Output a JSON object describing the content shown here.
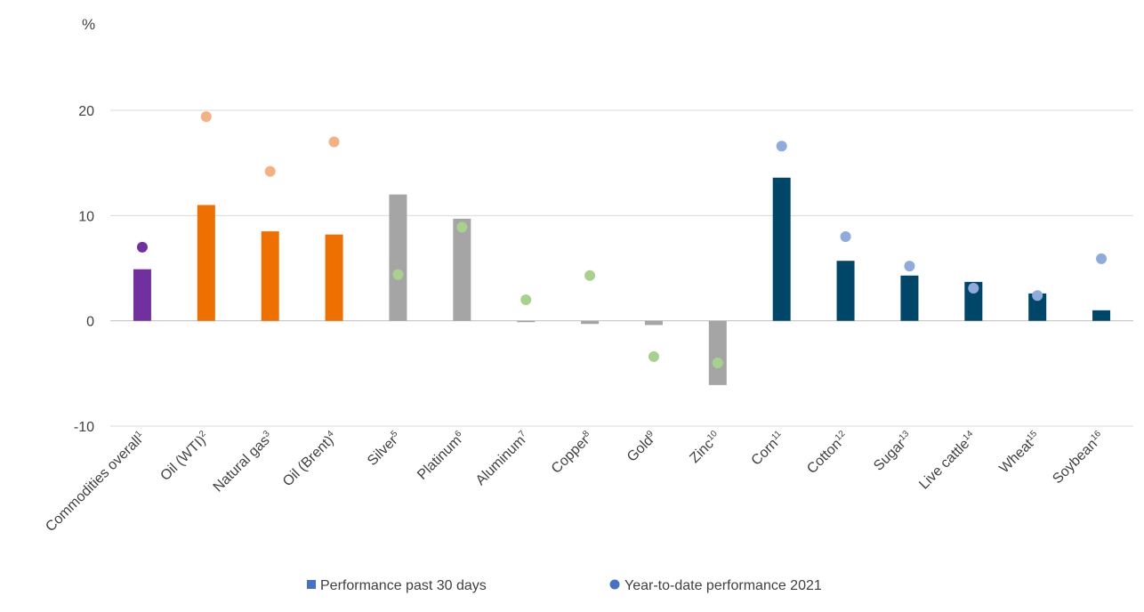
{
  "chart_data": {
    "type": "bar",
    "unit_label": "%",
    "ylim": [
      -10,
      20
    ],
    "yticks": [
      -10,
      0,
      10,
      20
    ],
    "ytick_labels": [
      "-10",
      "0",
      "10",
      "20"
    ],
    "grid": true,
    "legend_position": "bottom",
    "categories": [
      {
        "name": "Commodities overall",
        "sup": "1"
      },
      {
        "name": "Oil (WTI)",
        "sup": "2"
      },
      {
        "name": "Natural gas",
        "sup": "3"
      },
      {
        "name": "Oil (Brent)",
        "sup": "4"
      },
      {
        "name": "Silver",
        "sup": "5"
      },
      {
        "name": "Platinum",
        "sup": "6"
      },
      {
        "name": "Aluminum",
        "sup": "7"
      },
      {
        "name": "Copper",
        "sup": "8"
      },
      {
        "name": "Gold",
        "sup": "9"
      },
      {
        "name": "Zinc",
        "sup": "10"
      },
      {
        "name": "Corn",
        "sup": "11"
      },
      {
        "name": "Cotton",
        "sup": "12"
      },
      {
        "name": "Sugar",
        "sup": "13"
      },
      {
        "name": "Live cattle",
        "sup": "14"
      },
      {
        "name": "Wheat",
        "sup": "15"
      },
      {
        "name": "Soybean",
        "sup": "16"
      }
    ],
    "series": [
      {
        "name": "Performance past 30 days",
        "kind": "bar",
        "values": [
          4.9,
          11.0,
          8.5,
          8.2,
          12.0,
          9.7,
          -0.1,
          -0.3,
          -0.4,
          -6.1,
          13.6,
          5.7,
          4.3,
          3.7,
          2.6,
          1.0
        ]
      },
      {
        "name": "Year-to-date performance 2021",
        "kind": "point",
        "values": [
          7.0,
          19.4,
          14.2,
          17.0,
          4.4,
          8.9,
          2.0,
          4.3,
          -3.4,
          -4.0,
          16.6,
          8.0,
          5.2,
          3.1,
          2.4,
          5.9
        ]
      }
    ],
    "colors": {
      "bar": [
        "#7030a0",
        "#ed7000",
        "#ed7000",
        "#ed7000",
        "#a5a5a5",
        "#a5a5a5",
        "#a5a5a5",
        "#a5a5a5",
        "#a5a5a5",
        "#a5a5a5",
        "#004669",
        "#004669",
        "#004669",
        "#004669",
        "#004669",
        "#004669"
      ],
      "point": [
        "#7030a0",
        "#f4b183",
        "#f4b183",
        "#f4b183",
        "#a9d18e",
        "#a9d18e",
        "#a9d18e",
        "#a9d18e",
        "#a9d18e",
        "#a9d18e",
        "#8faadc",
        "#8faadc",
        "#8faadc",
        "#8faadc",
        "#8faadc",
        "#8faadc"
      ],
      "legend_bar": "#4472c4",
      "legend_point": "#4472c4"
    }
  }
}
